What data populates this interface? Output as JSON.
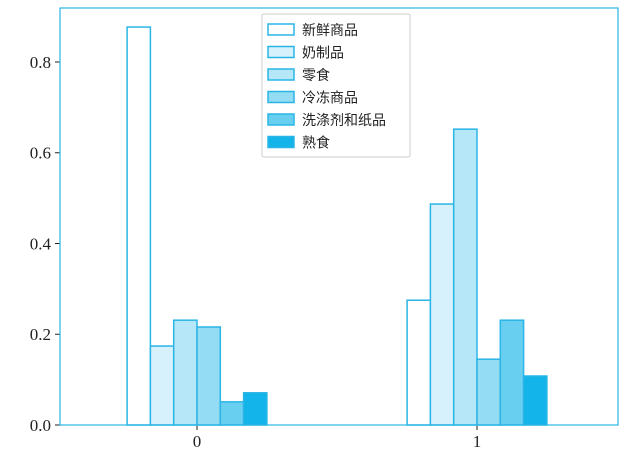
{
  "chart_data": {
    "type": "bar",
    "categories": [
      "0",
      "1"
    ],
    "series": [
      {
        "name": "新鲜商品",
        "color": "#ffffff",
        "values": [
          0.877,
          0.275
        ]
      },
      {
        "name": "奶制品",
        "color": "#d6f1fb",
        "values": [
          0.174,
          0.487
        ]
      },
      {
        "name": "零食",
        "color": "#b5e7f8",
        "values": [
          0.231,
          0.652
        ]
      },
      {
        "name": "冷冻商品",
        "color": "#93dcf4",
        "values": [
          0.216,
          0.145
        ]
      },
      {
        "name": "洗涤剂和纸品",
        "color": "#68cff1",
        "values": [
          0.051,
          0.231
        ]
      },
      {
        "name": "熟食",
        "color": "#12b4ea",
        "values": [
          0.071,
          0.108
        ]
      }
    ],
    "edge_color": "#2ab5e6",
    "ylim": [
      0,
      0.919
    ],
    "yticks": [
      {
        "value": 0,
        "label": "0.0"
      },
      0.2,
      0.4,
      0.6,
      0.8
    ],
    "legend": "upper center"
  }
}
